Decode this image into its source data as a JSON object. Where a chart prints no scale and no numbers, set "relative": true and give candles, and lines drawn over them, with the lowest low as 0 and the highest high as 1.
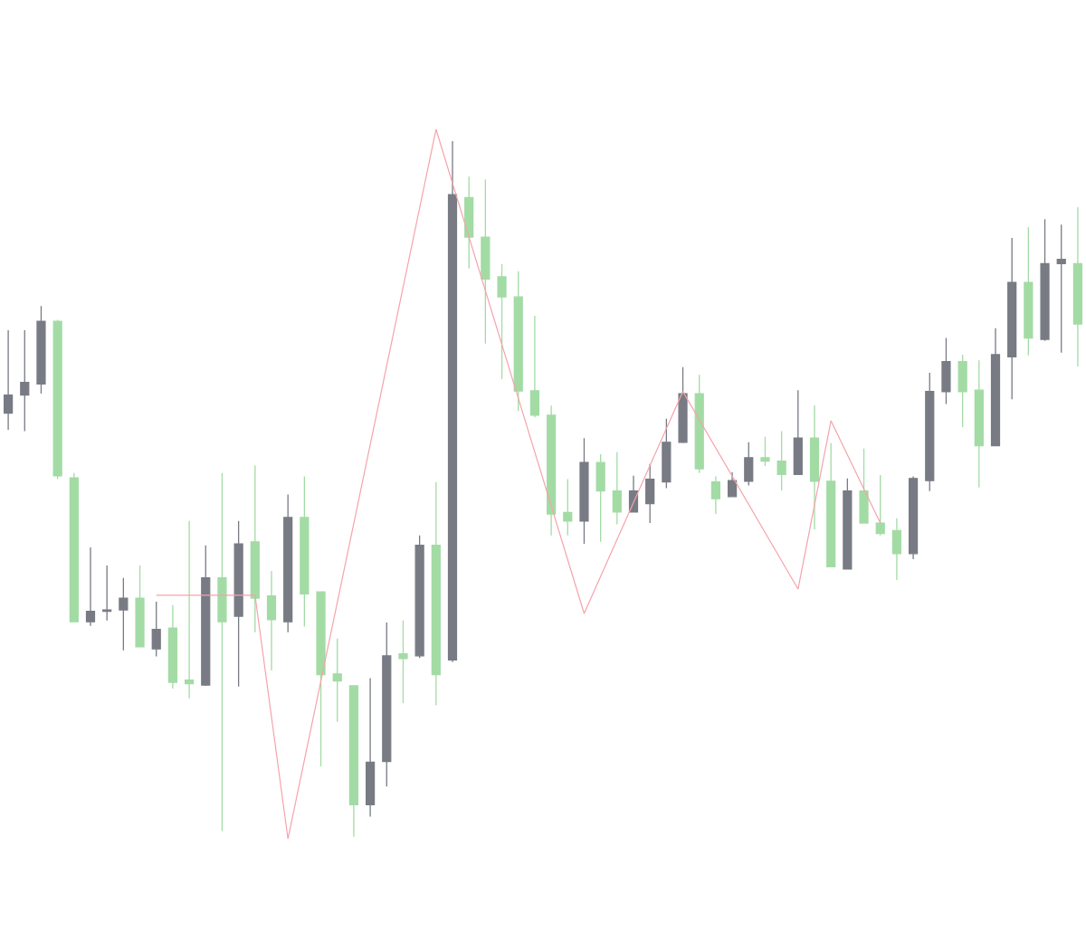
{
  "chart_data": {
    "type": "candlestick",
    "relative": true,
    "categories": [
      null,
      null,
      null,
      null,
      null,
      null,
      null,
      null,
      null,
      null,
      null,
      null,
      null,
      null,
      null,
      null,
      null,
      null,
      null,
      null,
      null,
      null,
      null,
      null,
      null,
      null,
      null,
      null,
      null,
      null,
      null,
      null,
      null,
      null,
      null,
      null,
      null,
      null,
      null,
      null,
      null,
      null,
      null,
      null,
      null,
      null,
      null,
      null,
      null,
      null,
      null,
      null,
      null,
      null,
      null,
      null,
      null,
      null,
      null,
      null,
      null,
      null,
      null,
      null,
      null,
      null
    ],
    "ohlc": [
      [
        0.609,
        0.728,
        0.585,
        0.635
      ],
      [
        0.635,
        0.728,
        0.583,
        0.653
      ],
      [
        0.651,
        0.763,
        0.637,
        0.741
      ],
      [
        0.741,
        0.743,
        0.514,
        0.519
      ],
      [
        0.516,
        0.523,
        0.309,
        0.309
      ],
      [
        0.309,
        0.416,
        0.303,
        0.324
      ],
      [
        0.324,
        0.39,
        0.311,
        0.326
      ],
      [
        0.326,
        0.372,
        0.268,
        0.343
      ],
      [
        0.343,
        0.39,
        0.273,
        0.273
      ],
      [
        0.27,
        0.338,
        0.259,
        0.298
      ],
      [
        0.3,
        0.333,
        0.213,
        0.222
      ],
      [
        0.225,
        0.454,
        0.199,
        0.22
      ],
      [
        0.218,
        0.419,
        0.217,
        0.372
      ],
      [
        0.372,
        0.523,
        0.008,
        0.309
      ],
      [
        0.317,
        0.454,
        0.216,
        0.421
      ],
      [
        0.424,
        0.534,
        0.294,
        0.343
      ],
      [
        0.346,
        0.382,
        0.239,
        0.312
      ],
      [
        0.309,
        0.492,
        0.294,
        0.459
      ],
      [
        0.459,
        0.518,
        0.302,
        0.349
      ],
      [
        0.352,
        0.352,
        0.101,
        0.233
      ],
      [
        0.234,
        0.285,
        0.165,
        0.224
      ],
      [
        0.217,
        0.217,
        0,
        0.046
      ],
      [
        0.046,
        0.228,
        0.029,
        0.107
      ],
      [
        0.108,
        0.308,
        0.072,
        0.26
      ],
      [
        0.263,
        0.311,
        0.192,
        0.256
      ],
      [
        0.26,
        0.433,
        0.257,
        0.419
      ],
      [
        0.419,
        0.51,
        0.189,
        0.233
      ],
      [
        0.254,
        1,
        0.251,
        0.923
      ],
      [
        0.919,
        0.949,
        0.817,
        0.862
      ],
      [
        0.862,
        0.945,
        0.709,
        0.802
      ],
      [
        0.805,
        0.823,
        0.658,
        0.776
      ],
      [
        0.776,
        0.813,
        0.612,
        0.641
      ],
      [
        0.641,
        0.749,
        0.603,
        0.606
      ],
      [
        0.606,
        0.62,
        0.433,
        0.464
      ],
      [
        0.466,
        0.514,
        0.433,
        0.454
      ],
      [
        0.454,
        0.573,
        0.421,
        0.538
      ],
      [
        0.538,
        0.55,
        0.424,
        0.497
      ],
      [
        0.497,
        0.553,
        0.449,
        0.467
      ],
      [
        0.467,
        0.519,
        0.466,
        0.497
      ],
      [
        0.479,
        0.536,
        0.451,
        0.514
      ],
      [
        0.51,
        0.601,
        0.501,
        0.567
      ],
      [
        0.567,
        0.675,
        0.566,
        0.637
      ],
      [
        0.637,
        0.664,
        0.523,
        0.529
      ],
      [
        0.51,
        0.518,
        0.464,
        0.486
      ],
      [
        0.489,
        0.524,
        0.488,
        0.512
      ],
      [
        0.511,
        0.567,
        0.505,
        0.545
      ],
      [
        0.545,
        0.575,
        0.533,
        0.54
      ],
      [
        0.54,
        0.583,
        0.498,
        0.521
      ],
      [
        0.521,
        0.642,
        0.521,
        0.573
      ],
      [
        0.573,
        0.62,
        0.442,
        0.511
      ],
      [
        0.511,
        0.566,
        0.388,
        0.388
      ],
      [
        0.385,
        0.515,
        0.385,
        0.497
      ],
      [
        0.497,
        0.558,
        0.451,
        0.451
      ],
      [
        0.451,
        0.52,
        0.433,
        0.436
      ],
      [
        0.44,
        0.458,
        0.369,
        0.407
      ],
      [
        0.407,
        0.518,
        0.399,
        0.515
      ],
      [
        0.512,
        0.667,
        0.497,
        0.64
      ],
      [
        0.64,
        0.717,
        0.622,
        0.683
      ],
      [
        0.683,
        0.693,
        0.589,
        0.64
      ],
      [
        0.642,
        0.685,
        0.502,
        0.562
      ],
      [
        0.562,
        0.731,
        0.562,
        0.693
      ],
      [
        0.69,
        0.861,
        0.629,
        0.797
      ],
      [
        0.797,
        0.876,
        0.692,
        0.717
      ],
      [
        0.715,
        0.888,
        0.713,
        0.824
      ],
      [
        0.824,
        0.88,
        0.696,
        0.83
      ],
      [
        0.824,
        0.905,
        0.676,
        0.737
      ]
    ],
    "colors": [
      "#787b84",
      "#787b84",
      "#787b84",
      "#a3dba5",
      "#a3dba5",
      "#787b84",
      "#787b84",
      "#787b84",
      "#a3dba5",
      "#787b84",
      "#a3dba5",
      "#a3dba5",
      "#787b84",
      "#a3dba5",
      "#787b84",
      "#a3dba5",
      "#a3dba5",
      "#787b84",
      "#a3dba5",
      "#a3dba5",
      "#a3dba5",
      "#a3dba5",
      "#787b84",
      "#787b84",
      "#a3dba5",
      "#787b84",
      "#a3dba5",
      "#787b84",
      "#a3dba5",
      "#a3dba5",
      "#a3dba5",
      "#a3dba5",
      "#a3dba5",
      "#a3dba5",
      "#a3dba5",
      "#787b84",
      "#a3dba5",
      "#a3dba5",
      "#787b84",
      "#787b84",
      "#787b84",
      "#787b84",
      "#a3dba5",
      "#a3dba5",
      "#787b84",
      "#787b84",
      "#a3dba5",
      "#a3dba5",
      "#787b84",
      "#a3dba5",
      "#a3dba5",
      "#787b84",
      "#a3dba5",
      "#a3dba5",
      "#a3dba5",
      "#787b84",
      "#787b84",
      "#787b84",
      "#a3dba5",
      "#a3dba5",
      "#787b84",
      "#787b84",
      "#a3dba5",
      "#787b84",
      "#787b84",
      "#a3dba5"
    ],
    "series": [
      {
        "type": "line",
        "color": "#f5a3ab",
        "values": [
          null,
          null,
          null,
          null,
          null,
          null,
          null,
          null,
          null,
          0.347,
          null,
          null,
          null,
          null,
          null,
          0.347,
          null,
          -0.003,
          null,
          null,
          null,
          null,
          null,
          null,
          null,
          null,
          1.017,
          null,
          null,
          null,
          null,
          null,
          null,
          null,
          null,
          0.321,
          null,
          null,
          null,
          null,
          null,
          0.64,
          null,
          null,
          null,
          null,
          null,
          null,
          0.356,
          null,
          0.598,
          null,
          null,
          0.451,
          null,
          null,
          null,
          null,
          null,
          null,
          null,
          null,
          null,
          null,
          null,
          null
        ]
      }
    ]
  }
}
